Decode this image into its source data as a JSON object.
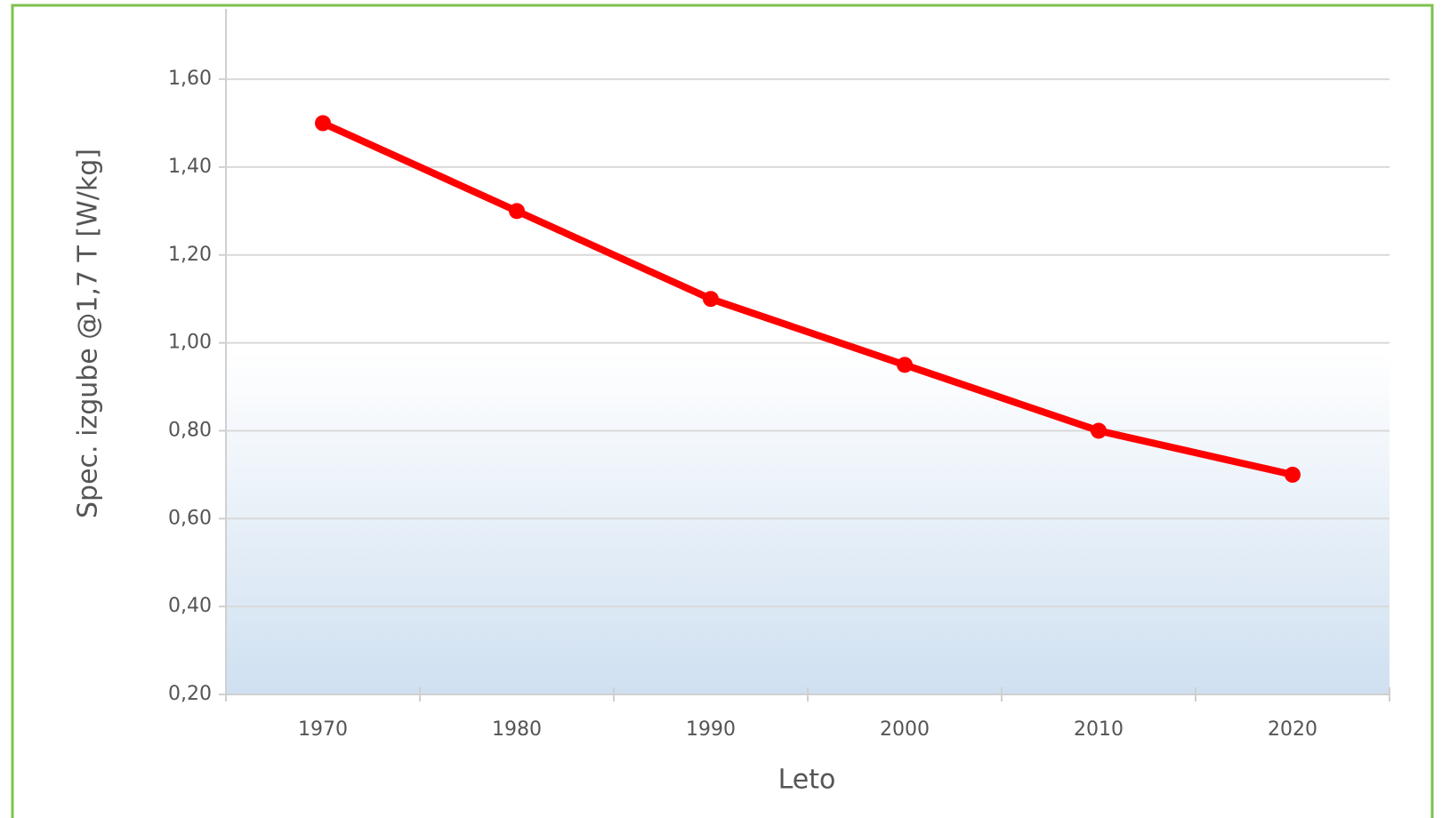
{
  "chart_data": {
    "type": "line",
    "x_label": "Leto",
    "y_label": "Spec. izgube @1,7 T  [W/kg]",
    "categories": [
      "1970",
      "1980",
      "1990",
      "2000",
      "2010",
      "2020"
    ],
    "series": [
      {
        "name": "Spec. izgube",
        "color": "#ff0000",
        "values": [
          1.5,
          1.3,
          1.1,
          0.95,
          0.8,
          0.7
        ]
      }
    ],
    "ylim": [
      0.2,
      1.76
    ],
    "yticks": [
      {
        "value": 0.2,
        "label": "0,20"
      },
      {
        "value": 0.4,
        "label": "0,40"
      },
      {
        "value": 0.6,
        "label": "0,60"
      },
      {
        "value": 0.8,
        "label": "0,80"
      },
      {
        "value": 1.0,
        "label": "1,00"
      },
      {
        "value": 1.2,
        "label": "1,20"
      },
      {
        "value": 1.4,
        "label": "1,40"
      },
      {
        "value": 1.6,
        "label": "1,60"
      }
    ],
    "grid": true
  }
}
